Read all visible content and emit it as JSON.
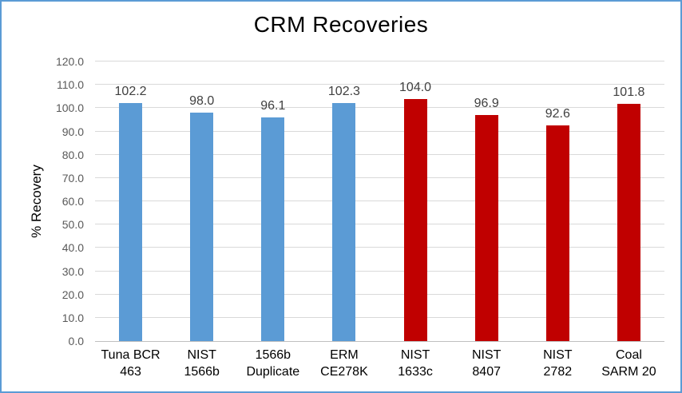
{
  "chart_data": {
    "type": "bar",
    "title": "CRM Recoveries",
    "xlabel": "",
    "ylabel": "% Recovery",
    "ylim": [
      0,
      120
    ],
    "ytick_interval": 10,
    "ytick_labels": [
      "0.0",
      "10.0",
      "20.0",
      "30.0",
      "40.0",
      "50.0",
      "60.0",
      "70.0",
      "80.0",
      "90.0",
      "100.0",
      "110.0",
      "120.0"
    ],
    "grid": true,
    "legend": "none",
    "categories": [
      "Tuna BCR 463",
      "NIST 1566b",
      "1566b Duplicate",
      "ERM CE278K",
      "NIST 1633c",
      "NIST 8407",
      "NIST 2782",
      "Coal SARM 20"
    ],
    "category_lines": [
      [
        "Tuna BCR",
        "463"
      ],
      [
        "NIST",
        "1566b"
      ],
      [
        "1566b",
        "Duplicate"
      ],
      [
        "ERM",
        "CE278K"
      ],
      [
        "NIST",
        "1633c"
      ],
      [
        "NIST",
        "8407"
      ],
      [
        "NIST",
        "2782"
      ],
      [
        "Coal",
        "SARM 20"
      ]
    ],
    "values": [
      102.2,
      98.0,
      96.1,
      102.3,
      104.0,
      96.9,
      92.6,
      101.8
    ],
    "value_labels": [
      "102.2",
      "98.0",
      "96.1",
      "102.3",
      "104.0",
      "96.9",
      "92.6",
      "101.8"
    ],
    "bar_colors": [
      "#5B9BD5",
      "#5B9BD5",
      "#5B9BD5",
      "#5B9BD5",
      "#C00000",
      "#C00000",
      "#C00000",
      "#C00000"
    ],
    "colors": {
      "blue_series": "#5B9BD5",
      "red_series": "#C00000",
      "gridline": "#D9D9D9",
      "axis_line": "#BFBFBF",
      "tick_label": "#595959",
      "data_label": "#404040",
      "category_label": "#000000",
      "chart_border": "#5B9BD5",
      "background": "#FFFFFF"
    }
  }
}
